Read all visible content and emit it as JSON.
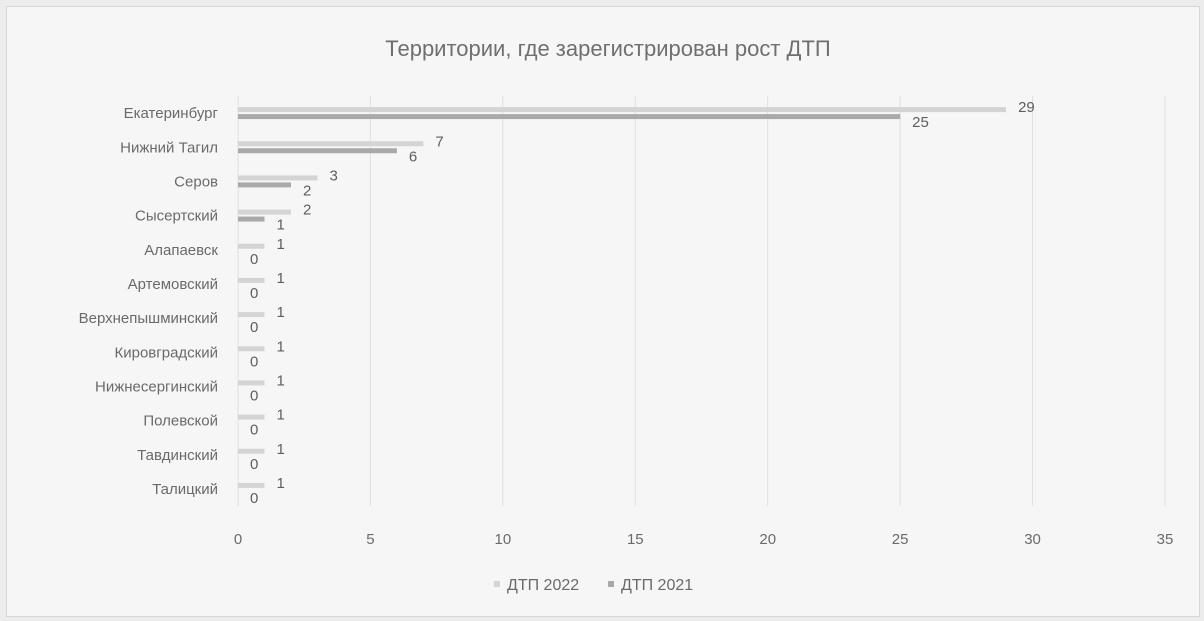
{
  "chart_data": {
    "type": "bar",
    "orientation": "horizontal",
    "title": "Территории, где зарегистрирован рост ДТП",
    "categories": [
      "Екатеринбург",
      "Нижний Тагил",
      "Серов",
      "Сысертский",
      "Алапаевск",
      "Артемовский",
      "Верхнепышминский",
      "Кировградский",
      "Нижнесергинский",
      "Полевской",
      "Тавдинский",
      "Талицкий"
    ],
    "series": [
      {
        "name": "ДТП 2022",
        "color": "#d4d4d4",
        "values": [
          29,
          7,
          3,
          2,
          1,
          1,
          1,
          1,
          1,
          1,
          1,
          1
        ]
      },
      {
        "name": "ДТП 2021",
        "color": "#a9a9a9",
        "values": [
          25,
          6,
          2,
          1,
          0,
          0,
          0,
          0,
          0,
          0,
          0,
          0
        ]
      }
    ],
    "xlim": [
      0,
      35
    ],
    "xticks": [
      "0",
      "5",
      "10",
      "15",
      "20",
      "25",
      "30",
      "35"
    ],
    "grid": true,
    "legend_position": "bottom"
  }
}
